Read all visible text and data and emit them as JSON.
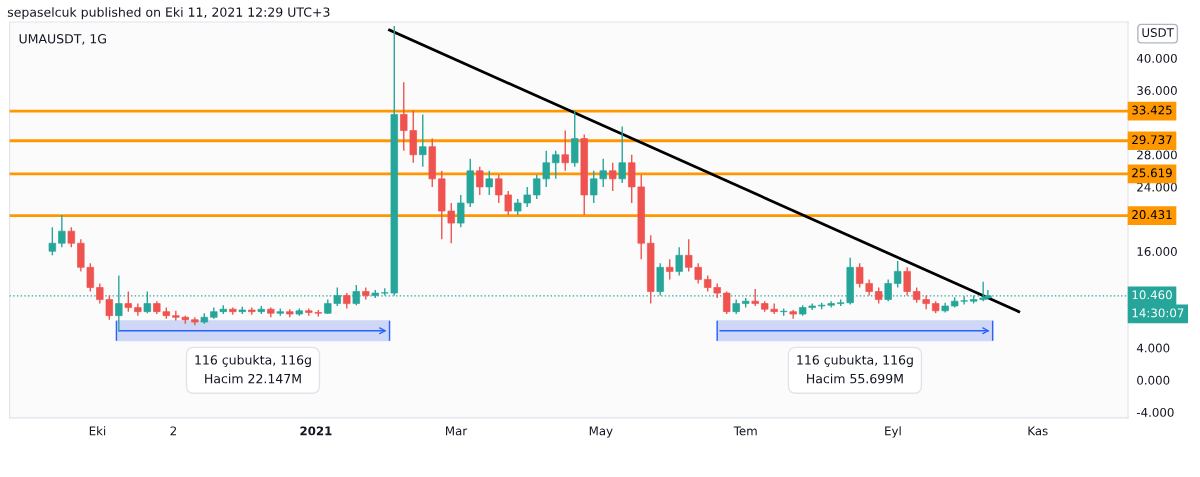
{
  "chart_data": {
    "type": "candlestick",
    "title": "UMAUSDT, 1G",
    "ylabel": "USDT",
    "x": [
      "2020-09-12",
      "2020-09-16",
      "2020-09-20",
      "2020-09-24",
      "2020-09-28",
      "2020-10-02",
      "2020-10-06",
      "2020-10-10",
      "2020-10-14",
      "2020-10-18",
      "2020-10-22",
      "2020-10-26",
      "2020-10-30",
      "2020-11-03",
      "2020-11-07",
      "2020-11-11",
      "2020-11-15",
      "2020-11-19",
      "2020-11-23",
      "2020-11-27",
      "2020-12-01",
      "2020-12-05",
      "2020-12-09",
      "2020-12-13",
      "2020-12-17",
      "2020-12-21",
      "2020-12-25",
      "2020-12-29",
      "2021-01-02",
      "2021-01-06",
      "2021-01-10",
      "2021-01-14",
      "2021-01-18",
      "2021-01-22",
      "2021-01-26",
      "2021-01-30",
      "2021-02-03",
      "2021-02-07",
      "2021-02-11",
      "2021-02-15",
      "2021-02-19",
      "2021-02-23",
      "2021-02-27",
      "2021-03-03",
      "2021-03-07",
      "2021-03-11",
      "2021-03-15",
      "2021-03-19",
      "2021-03-23",
      "2021-03-27",
      "2021-03-31",
      "2021-04-04",
      "2021-04-08",
      "2021-04-12",
      "2021-04-16",
      "2021-04-20",
      "2021-04-24",
      "2021-04-28",
      "2021-05-02",
      "2021-05-06",
      "2021-05-10",
      "2021-05-14",
      "2021-05-18",
      "2021-05-22",
      "2021-05-26",
      "2021-05-30",
      "2021-06-03",
      "2021-06-07",
      "2021-06-11",
      "2021-06-15",
      "2021-06-19",
      "2021-06-23",
      "2021-06-27",
      "2021-07-01",
      "2021-07-05",
      "2021-07-09",
      "2021-07-13",
      "2021-07-17",
      "2021-07-21",
      "2021-07-25",
      "2021-07-29",
      "2021-08-02",
      "2021-08-06",
      "2021-08-10",
      "2021-08-14",
      "2021-08-18",
      "2021-08-22",
      "2021-08-26",
      "2021-08-30",
      "2021-09-03",
      "2021-09-07",
      "2021-09-11",
      "2021-09-15",
      "2021-09-19",
      "2021-09-23",
      "2021-09-27",
      "2021-10-01",
      "2021-10-05",
      "2021-10-09",
      "2021-10-11"
    ],
    "ohlc": [
      [
        16,
        19,
        15.5,
        17
      ],
      [
        17,
        20.5,
        16.5,
        18.5
      ],
      [
        18.5,
        19,
        16.5,
        17
      ],
      [
        17,
        17.5,
        13.5,
        14
      ],
      [
        14,
        14.5,
        11,
        11.5
      ],
      [
        11.5,
        12,
        9.5,
        10
      ],
      [
        10,
        10.5,
        7.5,
        8
      ],
      [
        8,
        13,
        6,
        9.5
      ],
      [
        9.5,
        11,
        8.5,
        9
      ],
      [
        9,
        9.5,
        8,
        8.5
      ],
      [
        8.5,
        11,
        8.3,
        9.5
      ],
      [
        9.5,
        9.8,
        8.2,
        8.5
      ],
      [
        8.5,
        9,
        7.6,
        8
      ],
      [
        8,
        8.6,
        7.4,
        7.8
      ],
      [
        7.8,
        8,
        7,
        7.5
      ],
      [
        7.5,
        7.8,
        6.8,
        7.2
      ],
      [
        7.2,
        8.3,
        7,
        7.8
      ],
      [
        7.8,
        9,
        7.6,
        8.5
      ],
      [
        8.5,
        9.3,
        8.2,
        8.8
      ],
      [
        8.8,
        9,
        8.1,
        8.5
      ],
      [
        8.5,
        9.1,
        8.2,
        8.7
      ],
      [
        8.7,
        9,
        8.1,
        8.5
      ],
      [
        8.5,
        9.2,
        8.2,
        8.8
      ],
      [
        8.8,
        9,
        7.8,
        8.3
      ],
      [
        8.3,
        8.9,
        8,
        8.5
      ],
      [
        8.5,
        8.8,
        7.8,
        8.2
      ],
      [
        8.2,
        8.9,
        8,
        8.6
      ],
      [
        8.6,
        8.9,
        8,
        8.4
      ],
      [
        8.4,
        8.7,
        7.9,
        8.3
      ],
      [
        8.3,
        10,
        8.2,
        9.5
      ],
      [
        9.5,
        11.5,
        9.2,
        10.5
      ],
      [
        10.5,
        10.8,
        8.9,
        9.5
      ],
      [
        9.5,
        11.8,
        9.3,
        11
      ],
      [
        11,
        11.5,
        10,
        10.5
      ],
      [
        10.5,
        11.2,
        10.2,
        10.8
      ],
      [
        10.8,
        11.4,
        10.5,
        10.8
      ],
      [
        10.8,
        44,
        10.5,
        33
      ],
      [
        33,
        37,
        28.5,
        31
      ],
      [
        31,
        33.5,
        27,
        28
      ],
      [
        28,
        33,
        26.5,
        29
      ],
      [
        29,
        30,
        24,
        25
      ],
      [
        25,
        26,
        17.5,
        21
      ],
      [
        21,
        22,
        17,
        19.5
      ],
      [
        19.5,
        23,
        19,
        22
      ],
      [
        22,
        27.5,
        21.5,
        26
      ],
      [
        26,
        26.5,
        23,
        24
      ],
      [
        24,
        26,
        23,
        25
      ],
      [
        25,
        25.5,
        22,
        23
      ],
      [
        23,
        23.5,
        20.5,
        21
      ],
      [
        21,
        22.5,
        20.5,
        22
      ],
      [
        22,
        24,
        21.5,
        23
      ],
      [
        23,
        25.5,
        22.5,
        25
      ],
      [
        25,
        28.5,
        24,
        27
      ],
      [
        27,
        28.5,
        25,
        28
      ],
      [
        28,
        31,
        26,
        27
      ],
      [
        27,
        33.5,
        26.5,
        30
      ],
      [
        30,
        30.5,
        20.5,
        23
      ],
      [
        23,
        26,
        22,
        25
      ],
      [
        25,
        27.5,
        24,
        26
      ],
      [
        26,
        27,
        23.5,
        25
      ],
      [
        25,
        31.5,
        24.5,
        27
      ],
      [
        27,
        28,
        22,
        24
      ],
      [
        24,
        25.5,
        15,
        17
      ],
      [
        17,
        18,
        9.5,
        11
      ],
      [
        11,
        14.5,
        10.5,
        14
      ],
      [
        14,
        15,
        12.5,
        13.5
      ],
      [
        13.5,
        16.5,
        13,
        15.5
      ],
      [
        15.5,
        17.5,
        13.5,
        14
      ],
      [
        14,
        14.5,
        12,
        12.5
      ],
      [
        12.5,
        13,
        11,
        11.5
      ],
      [
        11.5,
        12,
        10.2,
        10.8
      ],
      [
        10.8,
        11,
        8.2,
        8.5
      ],
      [
        8.5,
        10,
        8.2,
        9.5
      ],
      [
        9.5,
        10.2,
        9,
        9.8
      ],
      [
        9.8,
        11.3,
        9.2,
        9.5
      ],
      [
        9.5,
        9.8,
        8.5,
        8.8
      ],
      [
        8.8,
        9.5,
        8.2,
        8.5
      ],
      [
        8.5,
        8.9,
        8,
        8.5
      ],
      [
        8.5,
        8.7,
        7.6,
        8.2
      ],
      [
        8.2,
        9.3,
        8,
        9
      ],
      [
        9,
        9.5,
        8.7,
        9.2
      ],
      [
        9.2,
        9.6,
        8.8,
        9.3
      ],
      [
        9.3,
        9.8,
        9,
        9.5
      ],
      [
        9.5,
        10,
        9.2,
        9.6
      ],
      [
        9.6,
        15.2,
        9.4,
        14
      ],
      [
        14,
        14.5,
        11.5,
        12
      ],
      [
        12,
        12.5,
        10.5,
        11
      ],
      [
        11,
        11.5,
        9.5,
        10
      ],
      [
        10,
        12.5,
        9.8,
        12
      ],
      [
        12,
        14.8,
        11.5,
        13.5
      ],
      [
        13.5,
        14,
        10.5,
        11
      ],
      [
        11,
        11.5,
        9.6,
        10
      ],
      [
        10,
        10.5,
        8.8,
        9.5
      ],
      [
        9.5,
        9.8,
        8.3,
        8.6
      ],
      [
        8.6,
        9.6,
        8.4,
        9.2
      ],
      [
        9.2,
        10.3,
        9,
        9.8
      ],
      [
        9.8,
        10.4,
        9.4,
        9.8
      ],
      [
        9.8,
        10.5,
        9.5,
        10
      ],
      [
        10,
        12.2,
        9.8,
        10.2
      ],
      [
        10.2,
        11.2,
        10,
        10.46
      ]
    ],
    "series": [
      {
        "type": "line",
        "color": "#000000",
        "x": [
          "2021-02-01",
          "2021-10-24"
        ],
        "values": [
          43.5,
          8.5
        ]
      }
    ],
    "xlim": [
      "2020-08-25",
      "2021-12-09"
    ],
    "xticks": [
      {
        "value": "2020-10-01",
        "label": "Eki"
      },
      {
        "value": "2020-11-02",
        "label": "2"
      },
      {
        "value": "2021-01-01",
        "label": "2021"
      },
      {
        "value": "2021-03-01",
        "label": "Mar"
      },
      {
        "value": "2021-05-01",
        "label": "May"
      },
      {
        "value": "2021-07-01",
        "label": "Tem"
      },
      {
        "value": "2021-09-01",
        "label": "Eyl"
      },
      {
        "value": "2021-11-01",
        "label": "Kas"
      }
    ],
    "ylim": [
      -4.7,
      44.5
    ],
    "yticks": [
      {
        "value": -4,
        "label": "-4.000"
      },
      {
        "value": 0,
        "label": "0.000"
      },
      {
        "value": 4,
        "label": "4.000"
      },
      {
        "value": 16,
        "label": "16.000"
      },
      {
        "value": 24,
        "label": "24.000"
      },
      {
        "value": 28,
        "label": "28.000"
      },
      {
        "value": 36,
        "label": "36.000"
      },
      {
        "value": 40,
        "label": "40.000"
      }
    ],
    "ref_lines": [
      {
        "axis": "y",
        "value": 33.425,
        "label": "33.425",
        "color": "#ff9800"
      },
      {
        "axis": "y",
        "value": 29.737,
        "label": "29.737",
        "color": "#ff9800"
      },
      {
        "axis": "y",
        "value": 25.619,
        "label": "25.619",
        "color": "#ff9800"
      },
      {
        "axis": "y",
        "value": 20.431,
        "label": "20.431",
        "color": "#ff9800"
      },
      {
        "axis": "y",
        "value": 10.46,
        "label": "10.460",
        "color": "#26a69a",
        "line_style": "dotted"
      }
    ],
    "bands": [
      {
        "axis": "x",
        "from": "2020-10-09",
        "to": "2021-02-01",
        "color": "#c5cff7"
      },
      {
        "axis": "x",
        "from": "2021-06-19",
        "to": "2021-10-13",
        "color": "#c5cff7"
      }
    ],
    "annotations": [
      "sepaselcuk published on Eki 11, 2021 12:29 UTC+3",
      "116 çubukta, 116g\nHacim 22.147M",
      "116 çubukta, 116g\nHacim 55.699M",
      "14:30:07"
    ],
    "grid": false,
    "legend": false
  }
}
